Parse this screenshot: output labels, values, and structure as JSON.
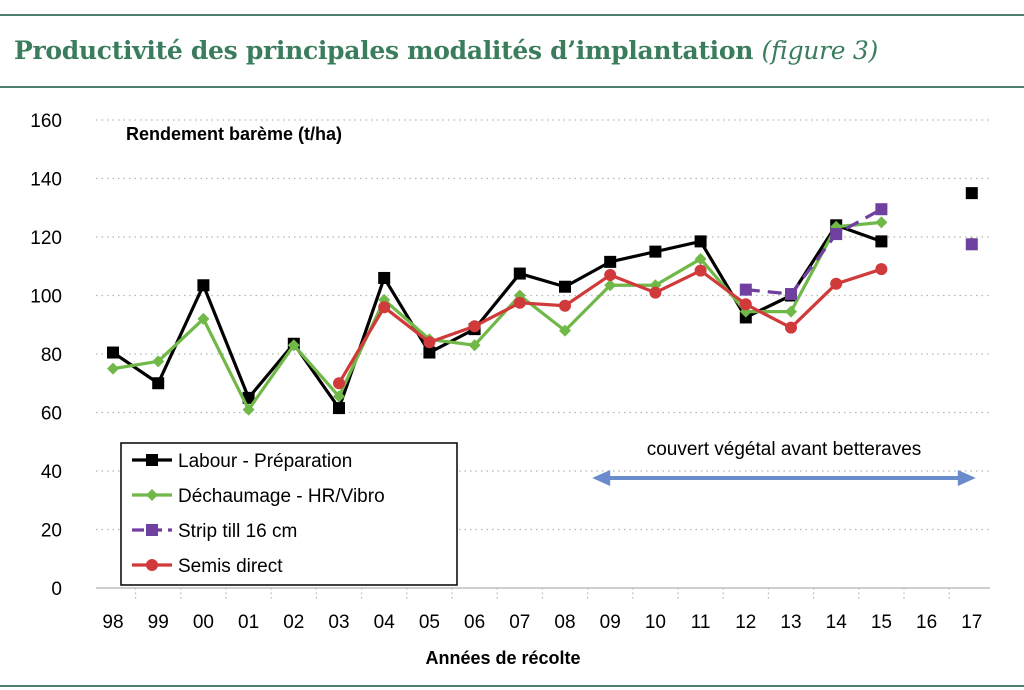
{
  "header": {
    "title": "Productivité des principales modalités d’implantation",
    "subtitle": "(figure 3)"
  },
  "chart_data": {
    "type": "line",
    "title": "",
    "ylabel": "Rendement barème (t/ha)",
    "xlabel": "Années de récolte",
    "ylim": [
      0,
      160
    ],
    "yticks": [
      "0",
      "20",
      "40",
      "60",
      "80",
      "100",
      "120",
      "140",
      "160"
    ],
    "categories": [
      "98",
      "99",
      "00",
      "01",
      "02",
      "03",
      "04",
      "05",
      "06",
      "07",
      "08",
      "09",
      "10",
      "11",
      "12",
      "13",
      "14",
      "15",
      "16",
      "17"
    ],
    "grid": "horizontal dotted",
    "legend_position": "bottom-left",
    "series": [
      {
        "name": "Labour - Préparation",
        "color": "#000000",
        "marker": "square",
        "dashed": false,
        "values": [
          80.5,
          70,
          103.5,
          65,
          83.5,
          61.5,
          106,
          80.5,
          88.5,
          107.5,
          103,
          111.5,
          115,
          118.5,
          92.5,
          100,
          124,
          118.5,
          null,
          135
        ]
      },
      {
        "name": "Déchaumage - HR/Vibro",
        "color": "#70b848",
        "marker": "diamond",
        "dashed": false,
        "values": [
          75,
          77.5,
          92,
          61,
          83,
          65.5,
          98.5,
          85,
          83,
          100,
          88,
          103.5,
          103.5,
          112.5,
          94.5,
          94.5,
          123.5,
          125,
          null,
          118
        ]
      },
      {
        "name": "Strip till 16 cm",
        "color": "#7040a0",
        "marker": "square",
        "dashed": true,
        "values": [
          null,
          null,
          null,
          null,
          null,
          null,
          null,
          null,
          null,
          null,
          null,
          null,
          null,
          null,
          102,
          100.5,
          121,
          129.5,
          null,
          117.5
        ]
      },
      {
        "name": "Semis direct",
        "color": "#d03a3a",
        "marker": "circle",
        "dashed": false,
        "values": [
          null,
          null,
          null,
          null,
          null,
          70,
          96,
          84,
          89.5,
          97.5,
          96.5,
          107,
          101,
          108.5,
          97,
          89,
          104,
          109,
          null,
          null
        ]
      }
    ],
    "annotations": [
      {
        "text": "couvert végétal avant betteraves",
        "from": "09",
        "to": "17",
        "type": "double-arrow",
        "color": "#6a8ccc"
      }
    ]
  }
}
